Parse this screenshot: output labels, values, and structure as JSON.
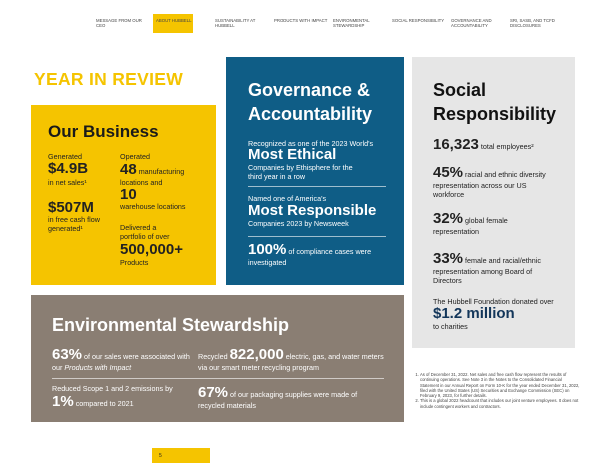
{
  "nav": [
    "MESSAGE FROM OUR CEO",
    "ABOUT HUBBELL",
    "SUSTAINABILITY AT HUBBELL",
    "PRODUCTS WITH IMPACT",
    "ENVIRONMENTAL STEWARDSHIP",
    "SOCIAL RESPONSIBILITY",
    "GOVERNANCE AND ACCOUNTABILITY",
    "SRI, SASB, AND TCFD DISCLOSURES"
  ],
  "page_title": "YEAR IN REVIEW",
  "business": {
    "title": "Our Business",
    "generated": "Generated",
    "sales_value": "$4.9B",
    "sales_label": "in net sales¹",
    "fcf_value": "$507M",
    "fcf_label": "in free cash flow generated¹",
    "operated": "Operated",
    "mfg_value": "48",
    "mfg_label": "manufacturing locations and",
    "wh_value": "10",
    "wh_label": "warehouse locations",
    "delivered": "Delivered a portfolio of over",
    "products_value": "500,000+",
    "products_label": "Products"
  },
  "governance": {
    "title": "Governance & Accountability",
    "ethical_pre": "Recognized as one of the 2023 World's",
    "ethical_value": "Most Ethical",
    "ethical_post": "Companies by Ethisphere for the third year in a row",
    "responsible_pre": "Named one of America's",
    "responsible_value": "Most Responsible",
    "responsible_post": "Companies 2023 by Newsweek",
    "compliance_value": "100%",
    "compliance_label": "of compliance cases were investigated"
  },
  "social": {
    "title": "Social Responsibility",
    "employees_value": "16,323",
    "employees_label": "total employees²",
    "diversity_value": "45%",
    "diversity_label": "racial and ethnic diversity representation across our US workforce",
    "female_value": "32%",
    "female_label": "global female representation",
    "board_value": "33%",
    "board_label": "female and racial/ethnic representation among Board of Directors",
    "foundation_pre": "The Hubbell Foundation donated over",
    "foundation_value": "$1.2 million",
    "foundation_post": "to charities"
  },
  "environment": {
    "title": "Environmental Stewardship",
    "sales_value": "63%",
    "sales_label_1": "of our sales were associated with our ",
    "sales_label_2": "Products with Impact",
    "recycled_pre": "Recycled",
    "recycled_value": "822,000",
    "recycled_label": "electric, gas, and water meters via our smart meter recycling program",
    "emissions_pre": "Reduced Scope 1 and 2 emissions by",
    "emissions_value": "1%",
    "emissions_label": "compared to 2021",
    "packaging_value": "67%",
    "packaging_label": "of our packaging supplies were made of recycled materials"
  },
  "footnotes": [
    "As of December 31, 2022. Net sales and free cash flow represent the results of continuing operations. See Note 3 in the Notes to the Consolidated Financial Statement in our Annual Report on Form 10-K for the year ended December 31, 2022, filed with the United States (US) Securities and Exchange Commission (SEC) on February 9, 2023, for further details.",
    "This is a global 2022 headcount that includes our joint venture employees. It does not include contingent workers and contractors."
  ],
  "page_number": "5"
}
